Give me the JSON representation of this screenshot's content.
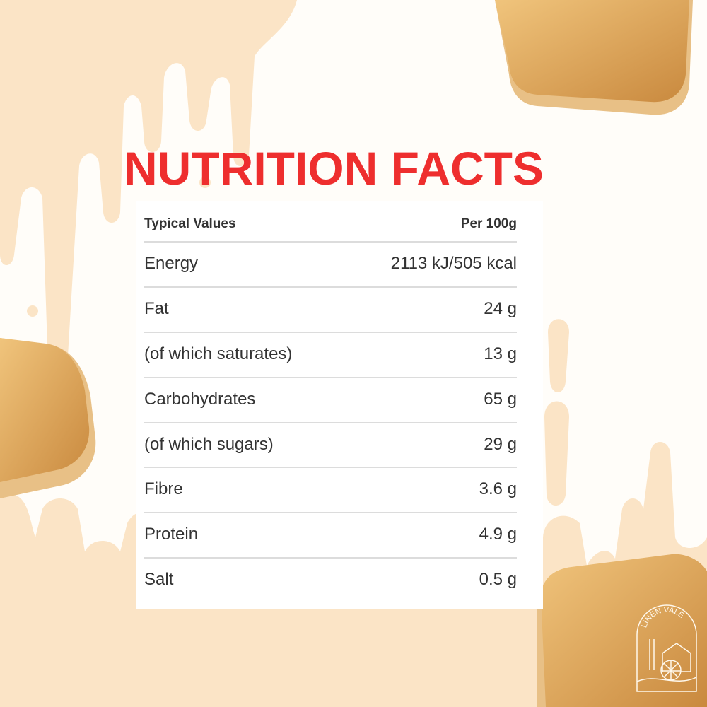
{
  "title": "NUTRITION FACTS",
  "table": {
    "header": {
      "label": "Typical Values",
      "value": "Per 100g"
    },
    "rows": [
      {
        "label": "Energy",
        "value": "2113 kJ/505 kcal"
      },
      {
        "label": "Fat",
        "value": "24 g"
      },
      {
        "label": "(of which saturates)",
        "value": "13 g"
      },
      {
        "label": "Carbohydrates",
        "value": "65 g"
      },
      {
        "label": "(of which sugars)",
        "value": "29 g"
      },
      {
        "label": "Fibre",
        "value": "3.6 g"
      },
      {
        "label": "Protein",
        "value": "4.9 g"
      },
      {
        "label": "Salt",
        "value": "0.5 g"
      }
    ]
  },
  "logo": {
    "text": "LINEN VALE"
  },
  "colors": {
    "title": "#ee2e2e",
    "cream": "#fbe4c6",
    "biscuit": "#e0a85a"
  }
}
